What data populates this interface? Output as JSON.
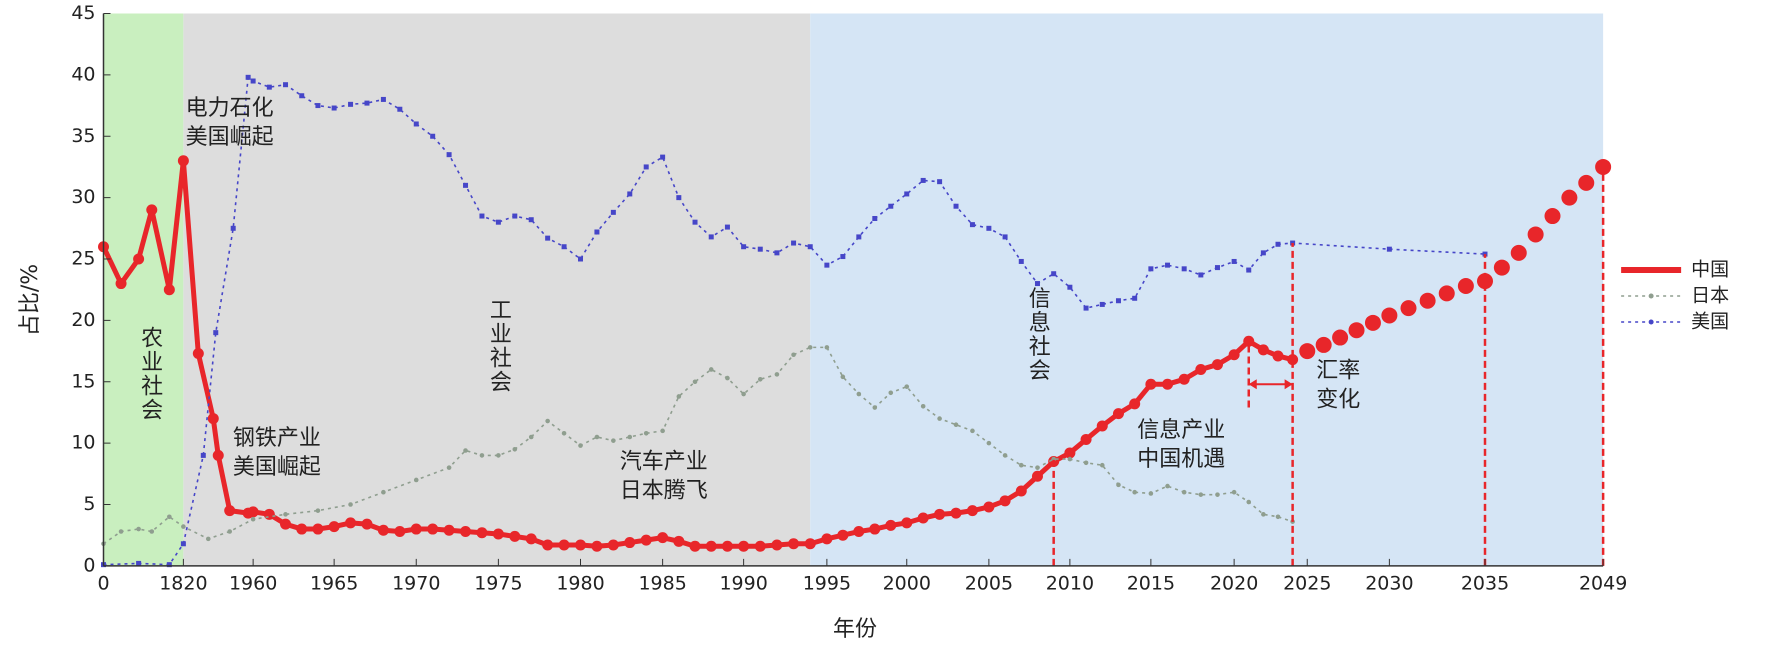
{
  "chart_data": {
    "type": "line",
    "x_label": "年份",
    "y_label": "占比/%",
    "ylim": [
      0,
      45
    ],
    "yticks": [
      0,
      5,
      10,
      15,
      20,
      25,
      30,
      35,
      40,
      45
    ],
    "xlim": [
      0,
      2049
    ],
    "xticks": [
      0,
      1820,
      1960,
      1965,
      1970,
      1975,
      1980,
      1985,
      1990,
      1995,
      2000,
      2005,
      2010,
      2015,
      2020,
      2025,
      2030,
      2035,
      2049
    ],
    "regions": [
      {
        "label": "农业社会",
        "from": 0,
        "to": 1820,
        "color": "#c9efbf",
        "label_color": "#4f8f35"
      },
      {
        "label": "工业社会",
        "from": 1820,
        "to": 1994,
        "color": "#dddddd",
        "label_color": "#222222"
      },
      {
        "label": "信息社会",
        "from": 1994,
        "to": 2049,
        "color": "#d5e5f5",
        "label_color": "#6a6ad8"
      }
    ],
    "series": [
      {
        "name": "中国",
        "color": "#e8262a",
        "x": [
          0,
          400,
          800,
          1100,
          1500,
          1820,
          1850,
          1880,
          1890,
          1913,
          1950,
          1960,
          1961,
          1962,
          1963,
          1964,
          1965,
          1966,
          1967,
          1968,
          1969,
          1970,
          1971,
          1972,
          1973,
          1974,
          1975,
          1976,
          1977,
          1978,
          1979,
          1980,
          1981,
          1982,
          1983,
          1984,
          1985,
          1986,
          1987,
          1988,
          1989,
          1990,
          1991,
          1992,
          1993,
          1994,
          1995,
          1996,
          1997,
          1998,
          1999,
          2000,
          2001,
          2002,
          2003,
          2004,
          2005,
          2006,
          2007,
          2008,
          2009,
          2010,
          2011,
          2012,
          2013,
          2014,
          2015,
          2016,
          2017,
          2018,
          2019,
          2020,
          2021,
          2022,
          2023,
          2024
        ],
        "values": [
          26,
          23,
          25,
          29,
          22.5,
          33,
          17.3,
          12,
          9,
          4.5,
          4.3,
          4.4,
          4.2,
          3.4,
          3.0,
          3.0,
          3.2,
          3.5,
          3.4,
          2.9,
          2.8,
          3.0,
          3.0,
          2.9,
          2.8,
          2.7,
          2.6,
          2.4,
          2.2,
          1.7,
          1.7,
          1.7,
          1.6,
          1.7,
          1.9,
          2.1,
          2.3,
          2.0,
          1.6,
          1.6,
          1.6,
          1.6,
          1.6,
          1.7,
          1.8,
          1.8,
          2.2,
          2.5,
          2.8,
          3.0,
          3.3,
          3.5,
          3.9,
          4.2,
          4.3,
          4.5,
          4.8,
          5.3,
          6.1,
          7.3,
          8.5,
          9.2,
          10.3,
          11.4,
          12.4,
          13.2,
          14.8,
          14.8,
          15.2,
          16.0,
          16.4,
          17.2,
          18.3,
          17.6,
          17.1,
          16.8
        ]
      },
      {
        "name": "日本",
        "color": "#8f9e8f",
        "x": [
          0,
          400,
          800,
          1100,
          1500,
          1820,
          1870,
          1913,
          1960,
          1962,
          1964,
          1966,
          1968,
          1970,
          1972,
          1973,
          1974,
          1975,
          1976,
          1977,
          1978,
          1979,
          1980,
          1981,
          1982,
          1983,
          1984,
          1985,
          1986,
          1987,
          1988,
          1989,
          1990,
          1991,
          1992,
          1993,
          1994,
          1995,
          1996,
          1997,
          1998,
          1999,
          2000,
          2001,
          2002,
          2003,
          2004,
          2005,
          2006,
          2007,
          2008,
          2009,
          2010,
          2011,
          2012,
          2013,
          2014,
          2015,
          2016,
          2017,
          2018,
          2019,
          2020,
          2021,
          2022,
          2023,
          2024
        ],
        "values": [
          1.8,
          2.8,
          3.0,
          2.8,
          4.0,
          3.2,
          2.2,
          2.8,
          3.8,
          4.2,
          4.5,
          5.0,
          6.0,
          7.0,
          8.0,
          9.4,
          9.0,
          9.0,
          9.5,
          10.5,
          11.8,
          10.8,
          9.8,
          10.5,
          10.2,
          10.5,
          10.8,
          11.0,
          13.8,
          15.0,
          16.0,
          15.3,
          14.0,
          15.2,
          15.6,
          17.2,
          17.8,
          17.8,
          15.4,
          14.0,
          12.9,
          14.1,
          14.6,
          13.0,
          12.0,
          11.5,
          11.0,
          10.0,
          9.0,
          8.2,
          8.0,
          8.7,
          8.7,
          8.4,
          8.2,
          6.6,
          6.0,
          5.9,
          6.5,
          6.0,
          5.8,
          5.8,
          6.0,
          5.2,
          4.2,
          4.0,
          3.6
        ]
      },
      {
        "name": "美国",
        "color": "#4646c8",
        "x": [
          0,
          800,
          1500,
          1820,
          1860,
          1885,
          1920,
          1950,
          1960,
          1961,
          1962,
          1963,
          1964,
          1965,
          1966,
          1967,
          1968,
          1969,
          1970,
          1971,
          1972,
          1973,
          1974,
          1975,
          1976,
          1977,
          1978,
          1979,
          1980,
          1981,
          1982,
          1983,
          1984,
          1985,
          1986,
          1987,
          1988,
          1989,
          1990,
          1991,
          1992,
          1993,
          1994,
          1995,
          1996,
          1997,
          1998,
          1999,
          2000,
          2001,
          2002,
          2003,
          2004,
          2005,
          2006,
          2007,
          2008,
          2009,
          2010,
          2011,
          2012,
          2013,
          2014,
          2015,
          2016,
          2017,
          2018,
          2019,
          2020,
          2021,
          2022,
          2023,
          2024,
          2030,
          2035
        ],
        "values": [
          0.1,
          0.2,
          0.1,
          1.8,
          9,
          19,
          27.5,
          39.8,
          39.5,
          39.0,
          39.2,
          38.3,
          37.5,
          37.3,
          37.6,
          37.7,
          38.0,
          37.2,
          36.0,
          35.0,
          33.5,
          31.0,
          28.5,
          28.0,
          28.5,
          28.2,
          26.7,
          26.0,
          25.0,
          27.2,
          28.8,
          30.3,
          32.5,
          33.3,
          30.0,
          28.0,
          26.8,
          27.6,
          26.0,
          25.8,
          25.5,
          26.3,
          26.0,
          24.5,
          25.2,
          26.8,
          28.3,
          29.3,
          30.3,
          31.4,
          31.3,
          29.3,
          27.8,
          27.5,
          26.8,
          24.8,
          23.0,
          23.8,
          22.7,
          21.0,
          21.3,
          21.6,
          21.8,
          24.2,
          24.5,
          24.2,
          23.7,
          24.3,
          24.8,
          24.1,
          25.5,
          26.2,
          26.3,
          25.8,
          25.4
        ]
      }
    ],
    "projection": {
      "color": "#e8262a",
      "x": [
        2025,
        2026,
        2027,
        2028,
        2029,
        2030,
        2031,
        2032,
        2033,
        2034,
        2035,
        2037,
        2039,
        2041,
        2043,
        2045,
        2047,
        2049
      ],
      "values": [
        17.5,
        18.0,
        18.6,
        19.2,
        19.8,
        20.4,
        21.0,
        21.6,
        22.2,
        22.8,
        23.2,
        24.3,
        25.5,
        27.0,
        28.5,
        30.0,
        31.2,
        32.5
      ]
    },
    "reference_lines": [
      {
        "x": 2009,
        "from": 0,
        "to": 8.7
      },
      {
        "x": 2021,
        "from": 12.9,
        "to": 18.3
      },
      {
        "x": 2024,
        "from": 0,
        "to": 26.3
      },
      {
        "x": 2035,
        "from": 0,
        "to": 25.4
      },
      {
        "x": 2049,
        "from": 0,
        "to": 32.5
      }
    ],
    "rate_arrow": {
      "from": 2021,
      "to": 2024,
      "y": 14.8
    },
    "annotations": [
      {
        "lines": [
          "电力石化",
          "美国崛起"
        ],
        "color": "#8b7fd6"
      },
      {
        "lines": [
          "钢铁产业",
          "美国崛起"
        ],
        "color": "#8b7fd6"
      },
      {
        "lines": [
          "汽车产业",
          "日本腾飞"
        ],
        "color": "#222222"
      },
      {
        "lines": [
          "信息产业",
          "中国机遇"
        ],
        "color": "#d8303c"
      },
      {
        "lines": [
          "汇率",
          "变化"
        ],
        "color": "#222222"
      }
    ],
    "legend": "right"
  }
}
